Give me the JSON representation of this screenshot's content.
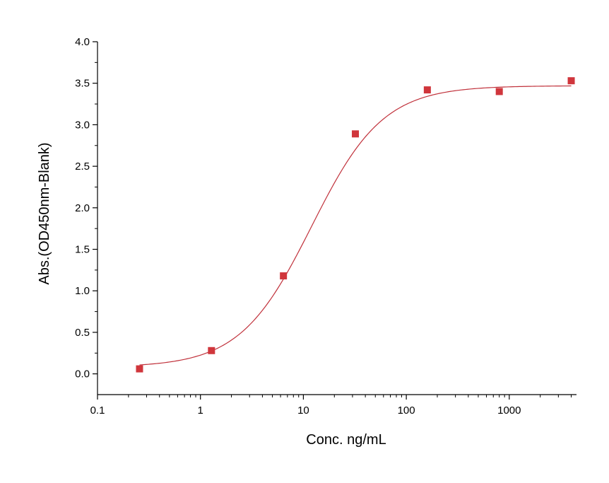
{
  "chart_data": {
    "type": "scatter",
    "title": "",
    "xlabel": "Conc. ng/mL",
    "ylabel": "Abs.(OD450nm-Blank)",
    "x_scale": "log",
    "xlim": [
      0.1,
      4500
    ],
    "ylim": [
      -0.25,
      4.0
    ],
    "x_ticks": [
      0.1,
      1,
      10,
      100,
      1000
    ],
    "x_tick_labels": [
      "0.1",
      "1",
      "10",
      "100",
      "1000"
    ],
    "y_ticks": [
      0.0,
      0.5,
      1.0,
      1.5,
      2.0,
      2.5,
      3.0,
      3.5,
      4.0
    ],
    "y_tick_labels": [
      "0.0",
      "0.5",
      "1.0",
      "1.5",
      "2.0",
      "2.5",
      "3.0",
      "3.5",
      "4.0"
    ],
    "grid": false,
    "legend": "none",
    "marker_color": "#d0363c",
    "curve_color": "#c0303a",
    "series": [
      {
        "x": [
          0.256,
          1.28,
          6.4,
          32,
          160,
          800,
          4000
        ],
        "y": [
          0.06,
          0.28,
          1.18,
          2.89,
          3.42,
          3.4,
          3.53
        ]
      }
    ],
    "fit": {
      "model": "4PL",
      "bottom": 0.08,
      "top": 3.47,
      "ec50": 12,
      "hill": 1.25
    }
  }
}
